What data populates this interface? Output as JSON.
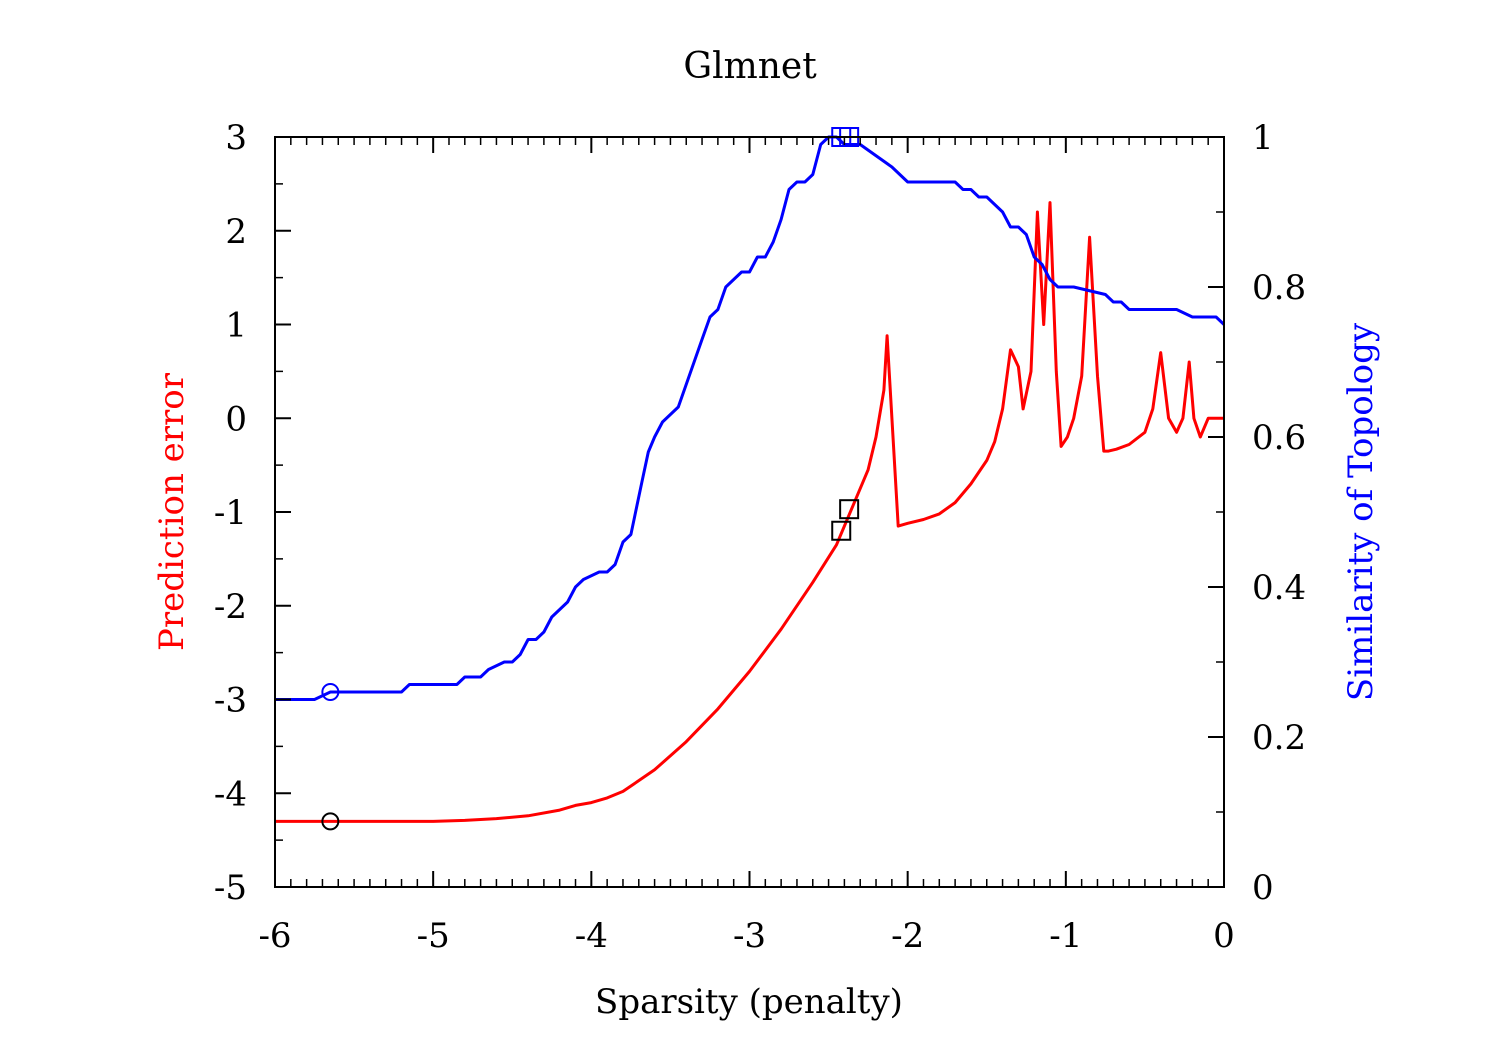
{
  "chart_data": {
    "type": "line",
    "title": "Glmnet",
    "xlabel": "Sparsity (penalty)",
    "ylabel_left": "Prediction error",
    "ylabel_right": "Similarity of Topology",
    "xlim": [
      -6,
      0
    ],
    "ylim_left": [
      -5,
      3
    ],
    "ylim_right": [
      0,
      1
    ],
    "x_ticks": [
      "-6",
      "-5",
      "-4",
      "-3",
      "-2",
      "-1",
      "0"
    ],
    "y_left_ticks": [
      "-5",
      "-4",
      "-3",
      "-2",
      "-1",
      "0",
      "1",
      "2",
      "3"
    ],
    "y_right_ticks": [
      "0",
      "0.2",
      "0.4",
      "0.6",
      "0.8",
      "1"
    ],
    "grid": false,
    "colors": {
      "error": "#ff0000",
      "similarity": "#0000ff",
      "markers": "#000000"
    },
    "series": [
      {
        "axis": "left",
        "color": "#ff0000",
        "x": [
          -6.0,
          -5.5,
          -5.0,
          -4.8,
          -4.6,
          -4.4,
          -4.2,
          -4.1,
          -4.0,
          -3.9,
          -3.8,
          -3.6,
          -3.4,
          -3.2,
          -3.0,
          -2.8,
          -2.6,
          -2.45,
          -2.35,
          -2.25,
          -2.2,
          -2.15,
          -2.13,
          -2.06,
          -2.0,
          -1.9,
          -1.8,
          -1.7,
          -1.6,
          -1.5,
          -1.45,
          -1.4,
          -1.35,
          -1.3,
          -1.27,
          -1.22,
          -1.18,
          -1.14,
          -1.1,
          -1.06,
          -1.03,
          -0.99,
          -0.95,
          -0.9,
          -0.85,
          -0.8,
          -0.76,
          -0.73,
          -0.68,
          -0.6,
          -0.5,
          -0.45,
          -0.4,
          -0.35,
          -0.3,
          -0.26,
          -0.22,
          -0.19,
          -0.15,
          -0.1,
          -0.06,
          -0.02,
          0.0
        ],
        "y": [
          -4.3,
          -4.3,
          -4.3,
          -4.29,
          -4.27,
          -4.24,
          -4.18,
          -4.13,
          -4.1,
          -4.05,
          -3.98,
          -3.75,
          -3.45,
          -3.1,
          -2.7,
          -2.25,
          -1.75,
          -1.35,
          -0.95,
          -0.55,
          -0.2,
          0.3,
          0.88,
          -1.15,
          -1.12,
          -1.08,
          -1.02,
          -0.9,
          -0.7,
          -0.45,
          -0.25,
          0.1,
          0.73,
          0.55,
          0.1,
          0.5,
          2.2,
          1.0,
          2.3,
          0.5,
          -0.3,
          -0.2,
          0.0,
          0.45,
          1.93,
          0.45,
          -0.35,
          -0.35,
          -0.33,
          -0.28,
          -0.15,
          0.1,
          0.7,
          0.0,
          -0.15,
          0.0,
          0.6,
          0.0,
          -0.2,
          0.0,
          0.0,
          0.0,
          0.0
        ]
      },
      {
        "axis": "right",
        "color": "#0000ff",
        "x": [
          -6.0,
          -5.75,
          -5.65,
          -5.6,
          -5.2,
          -5.15,
          -4.85,
          -4.8,
          -4.7,
          -4.65,
          -4.55,
          -4.5,
          -4.45,
          -4.4,
          -4.35,
          -4.3,
          -4.25,
          -4.15,
          -4.1,
          -4.05,
          -3.95,
          -3.9,
          -3.85,
          -3.8,
          -3.75,
          -3.72,
          -3.68,
          -3.64,
          -3.6,
          -3.55,
          -3.5,
          -3.45,
          -3.4,
          -3.35,
          -3.3,
          -3.25,
          -3.2,
          -3.15,
          -3.05,
          -3.0,
          -2.95,
          -2.9,
          -2.85,
          -2.8,
          -2.75,
          -2.7,
          -2.65,
          -2.6,
          -2.55,
          -2.5,
          -2.45,
          -2.4,
          -2.35,
          -2.3,
          -2.1,
          -2.05,
          -2.0,
          -1.95,
          -1.7,
          -1.65,
          -1.6,
          -1.55,
          -1.5,
          -1.45,
          -1.4,
          -1.35,
          -1.3,
          -1.25,
          -1.2,
          -1.15,
          -1.1,
          -1.05,
          -1.0,
          -0.95,
          -0.75,
          -0.7,
          -0.65,
          -0.6,
          -0.5,
          -0.45,
          -0.3,
          -0.2,
          -0.15,
          -0.05,
          0.0
        ],
        "y": [
          0.25,
          0.25,
          0.26,
          0.26,
          0.26,
          0.27,
          0.27,
          0.28,
          0.28,
          0.29,
          0.3,
          0.3,
          0.31,
          0.33,
          0.33,
          0.34,
          0.36,
          0.38,
          0.4,
          0.41,
          0.42,
          0.42,
          0.43,
          0.46,
          0.47,
          0.5,
          0.54,
          0.58,
          0.6,
          0.62,
          0.63,
          0.64,
          0.67,
          0.7,
          0.73,
          0.76,
          0.77,
          0.8,
          0.82,
          0.82,
          0.84,
          0.84,
          0.86,
          0.89,
          0.93,
          0.94,
          0.94,
          0.95,
          0.99,
          1.0,
          1.0,
          0.99,
          0.99,
          0.99,
          0.96,
          0.95,
          0.94,
          0.94,
          0.94,
          0.93,
          0.93,
          0.92,
          0.92,
          0.91,
          0.9,
          0.88,
          0.88,
          0.87,
          0.84,
          0.83,
          0.81,
          0.8,
          0.8,
          0.8,
          0.79,
          0.78,
          0.78,
          0.77,
          0.77,
          0.77,
          0.77,
          0.76,
          0.76,
          0.76,
          0.75
        ]
      }
    ],
    "markers": [
      {
        "shape": "circle",
        "axis": "left",
        "color": "#000000",
        "x": -5.65,
        "y": -4.3
      },
      {
        "shape": "circle",
        "axis": "right",
        "color": "#0000ff",
        "x": -5.65,
        "y": 0.26
      },
      {
        "shape": "square",
        "axis": "left",
        "color": "#000000",
        "x": -2.42,
        "y": -1.2
      },
      {
        "shape": "square",
        "axis": "left",
        "color": "#000000",
        "x": -2.37,
        "y": -0.97
      },
      {
        "shape": "square",
        "axis": "right",
        "color": "#0000ff",
        "x": -2.42,
        "y": 1.0
      },
      {
        "shape": "square",
        "axis": "right",
        "color": "#0000ff",
        "x": -2.37,
        "y": 1.0
      }
    ]
  }
}
